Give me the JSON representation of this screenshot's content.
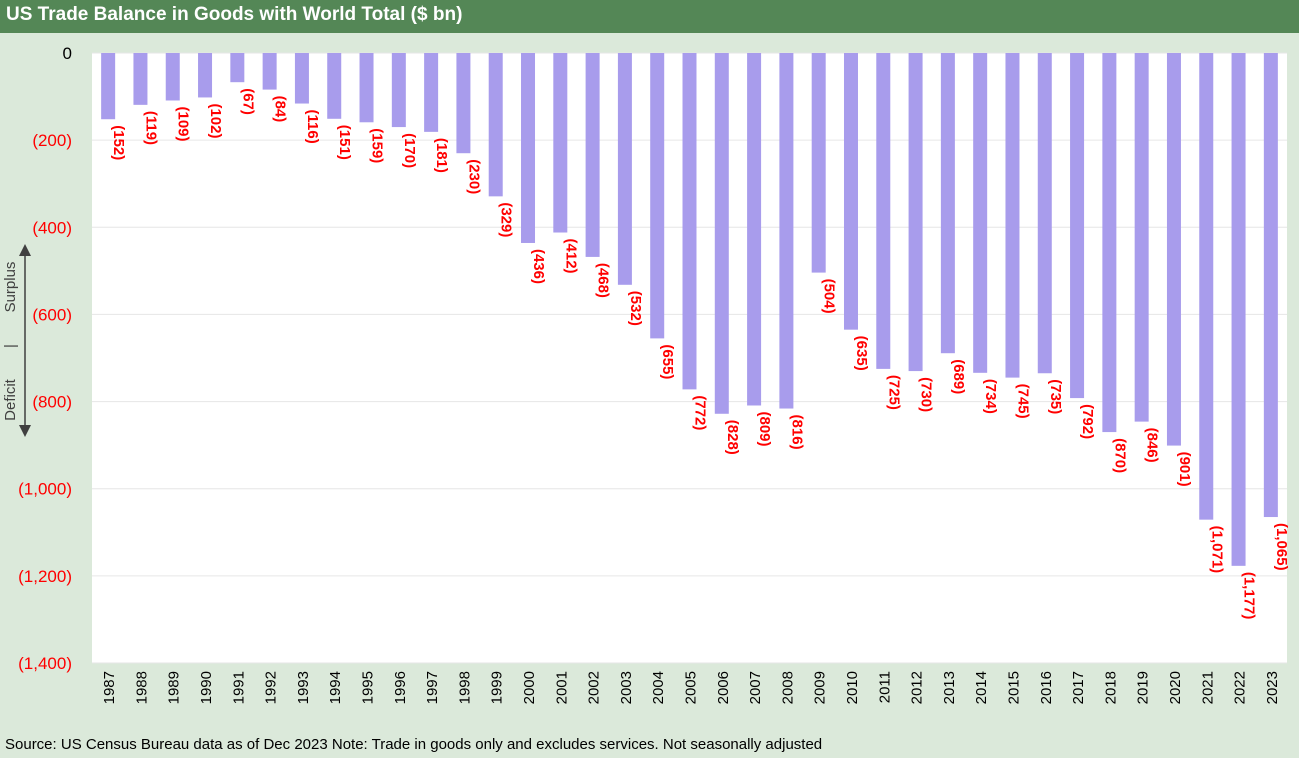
{
  "title": "US Trade Balance in Goods with World Total ($ bn)",
  "source": "Source: US Census Bureau data as of Dec 2023 Note: Trade in goods only and excludes services. Not seasonally adjusted",
  "axis_annotation": {
    "up": "Surplus",
    "separator": "|",
    "down": "Deficit"
  },
  "colors": {
    "bar": "#a89cec",
    "label": "#ff0000",
    "title_bg": "#548756",
    "background": "#dbe9da",
    "plot_bg": "#ffffff"
  },
  "chart_data": {
    "type": "bar",
    "title": "US Trade Balance in Goods with World Total ($ bn)",
    "categories": [
      "1987",
      "1988",
      "1989",
      "1990",
      "1991",
      "1992",
      "1993",
      "1994",
      "1995",
      "1996",
      "1997",
      "1998",
      "1999",
      "2000",
      "2001",
      "2002",
      "2003",
      "2004",
      "2005",
      "2006",
      "2007",
      "2008",
      "2009",
      "2010",
      "2011",
      "2012",
      "2013",
      "2014",
      "2015",
      "2016",
      "2017",
      "2018",
      "2019",
      "2020",
      "2021",
      "2022",
      "2023"
    ],
    "values": [
      -152,
      -119,
      -109,
      -102,
      -67,
      -84,
      -116,
      -151,
      -159,
      -170,
      -181,
      -230,
      -329,
      -436,
      -412,
      -468,
      -532,
      -655,
      -772,
      -828,
      -809,
      -816,
      -504,
      -635,
      -725,
      -730,
      -689,
      -734,
      -745,
      -735,
      -792,
      -870,
      -846,
      -901,
      -1071,
      -1177,
      -1065
    ],
    "data_labels": [
      "(152)",
      "(119)",
      "(109)",
      "(102)",
      "(67)",
      "(84)",
      "(116)",
      "(151)",
      "(159)",
      "(170)",
      "(181)",
      "(230)",
      "(329)",
      "(436)",
      "(412)",
      "(468)",
      "(532)",
      "(655)",
      "(772)",
      "(828)",
      "(809)",
      "(816)",
      "(504)",
      "(635)",
      "(725)",
      "(730)",
      "(689)",
      "(734)",
      "(745)",
      "(735)",
      "(792)",
      "(870)",
      "(846)",
      "(901)",
      "(1,071)",
      "(1,177)",
      "(1,065)"
    ],
    "yticks": [
      0,
      -200,
      -400,
      -600,
      -800,
      -1000,
      -1200,
      -1400
    ],
    "ytick_labels": [
      "0",
      "(200)",
      "(400)",
      "(600)",
      "(800)",
      "(1,000)",
      "(1,200)",
      "(1,400)"
    ],
    "ylim": [
      -1400,
      0
    ],
    "xlabel": "",
    "ylabel": "",
    "grid": true,
    "legend": "none"
  }
}
